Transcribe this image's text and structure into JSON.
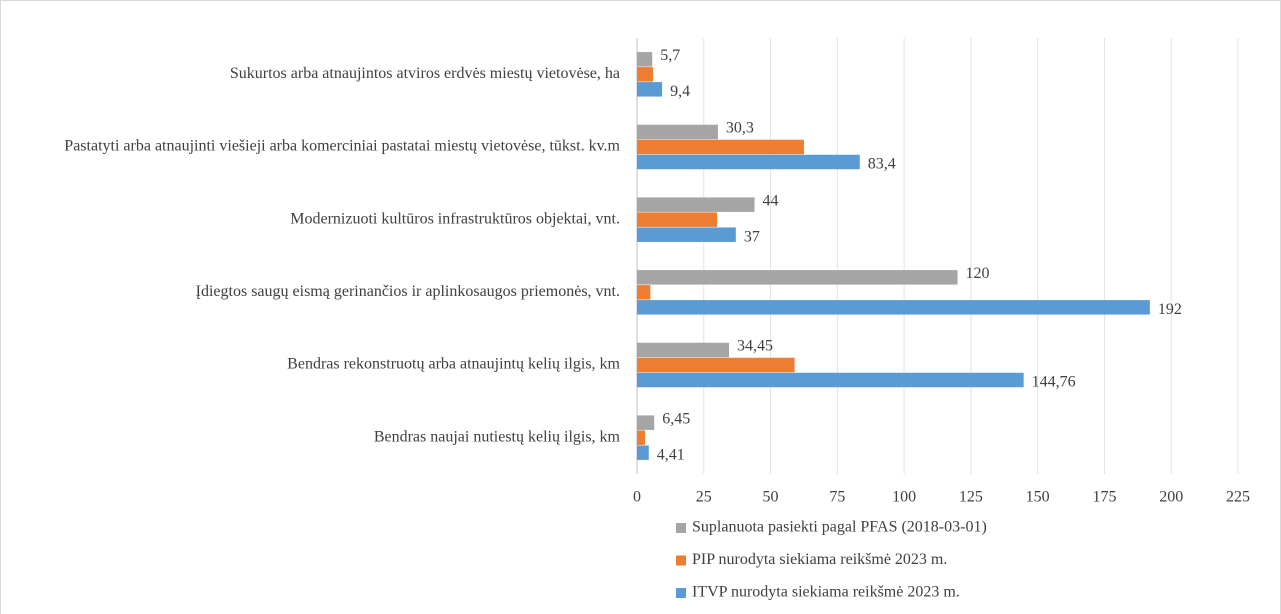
{
  "chart_data": {
    "type": "hbar",
    "categories": [
      "Sukurtos arba atnaujintos atviros erdvės miestų vietovėse, ha",
      "Pastatyti arba atnaujinti viešieji arba komerciniai pastatai miestų vietovėse, tūkst. kv.m",
      "Modernizuoti kultūros infrastruktūros objektai, vnt.",
      "Įdiegtos saugų eismą gerinančios ir aplinkosaugos priemonės, vnt.",
      "Bendras rekonstruotų arba atnaujintų kelių ilgis, km",
      "Bendras naujai nutiestų kelių ilgis, km"
    ],
    "series": [
      {
        "name": "Suplanuota pasiekti pagal PFAS (2018-03-01)",
        "color": "#a5a5a5",
        "values": [
          5.7,
          30.3,
          44,
          120,
          34.45,
          6.45
        ],
        "value_labels": [
          "5,7",
          "30,3",
          "44",
          "120",
          "34,45",
          "6,45"
        ]
      },
      {
        "name": "PIP nurodyta siekiama reikšmė 2023 m.",
        "color": "#ed7d31",
        "values": [
          6,
          62.5,
          30,
          5,
          59,
          3
        ]
      },
      {
        "name": "ITVP nurodyta siekiama reikšmė 2023 m.",
        "color": "#5b9bd5",
        "values": [
          9.4,
          83.4,
          37,
          192,
          144.76,
          4.41
        ],
        "value_labels": [
          "9,4",
          "83,4",
          "37",
          "192",
          "144,76",
          "4,41"
        ]
      }
    ],
    "xlim": [
      0,
      225
    ],
    "xticks": [
      0,
      25,
      50,
      75,
      100,
      125,
      150,
      175,
      200,
      225
    ],
    "grid": true,
    "legend": "bottom"
  }
}
